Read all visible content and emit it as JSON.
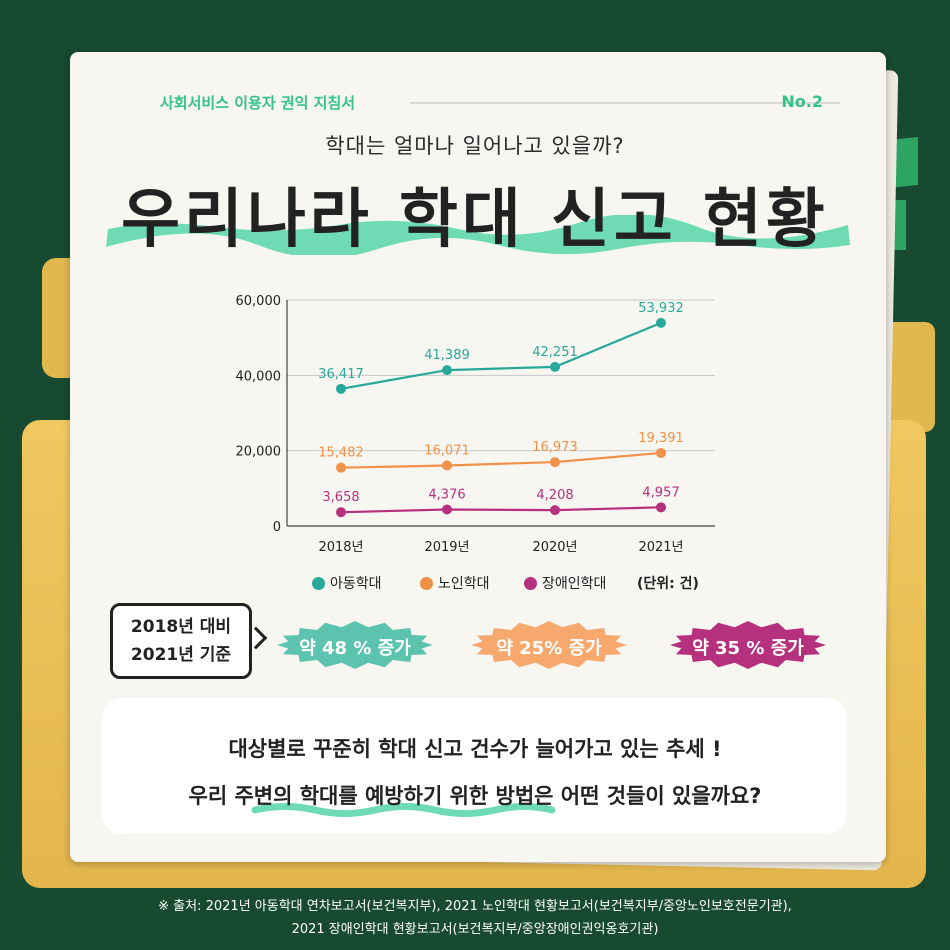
{
  "header": {
    "series_name": "사회서비스 이용자 권익 지침서",
    "issue": "No.2"
  },
  "subtitle": "학대는 얼마나 일어나고 있을까?",
  "title": "우리나라 학대 신고 현황",
  "chart_data": {
    "type": "line",
    "x": [
      "2018년",
      "2019년",
      "2020년",
      "2021년"
    ],
    "yticks": [
      "60,000",
      "40,000",
      "20,000",
      "0"
    ],
    "ylim": [
      0,
      60000
    ],
    "grid": true,
    "series": [
      {
        "name": "아동학대",
        "color": "#27a89b",
        "values": [
          36417,
          41389,
          42251,
          53932
        ],
        "labels": [
          "36,417",
          "41,389",
          "42,251",
          "53,932"
        ]
      },
      {
        "name": "노인학대",
        "color": "#f0914a",
        "values": [
          15482,
          16071,
          16973,
          19391
        ],
        "labels": [
          "15,482",
          "16,071",
          "16,973",
          "19,391"
        ]
      },
      {
        "name": "장애인학대",
        "color": "#b6317d",
        "values": [
          3658,
          4376,
          4208,
          4957
        ],
        "labels": [
          "3,658",
          "4,376",
          "4,208",
          "4,957"
        ]
      }
    ],
    "unit": "(단위: 건)",
    "legend_position": "bottom"
  },
  "comparison": {
    "label_line1": "2018년 대비",
    "label_line2": "2021년 기준",
    "badges": [
      {
        "text": "약 48 % 증가",
        "color": "#5cc3ae"
      },
      {
        "text": "약 25% 증가",
        "color": "#f7a86d"
      },
      {
        "text": "약 35 % 증가",
        "color": "#b6317d"
      }
    ]
  },
  "callout": {
    "line1": "대상별로 꾸준히 학대 신고 건수가 늘어가고 있는 추세 !",
    "line2": "우리 주변의 학대를 예방하기 위한 방법은 어떤 것들이 있을까요?"
  },
  "footer": {
    "line1": "※ 출처: 2021년 아동학대 연차보고서(보건복지부), 2021 노인학대 현황보고서(보건복지부/중앙노인보호전문기관),",
    "line2": "2021 장애인학대 현황보고서(보건복지부/중앙장애인권익옹호기관)"
  },
  "colors": {
    "accent": "#35c286",
    "background": "#174a31",
    "folder": "#e3b64c",
    "highlight": "#6fdbb4"
  }
}
